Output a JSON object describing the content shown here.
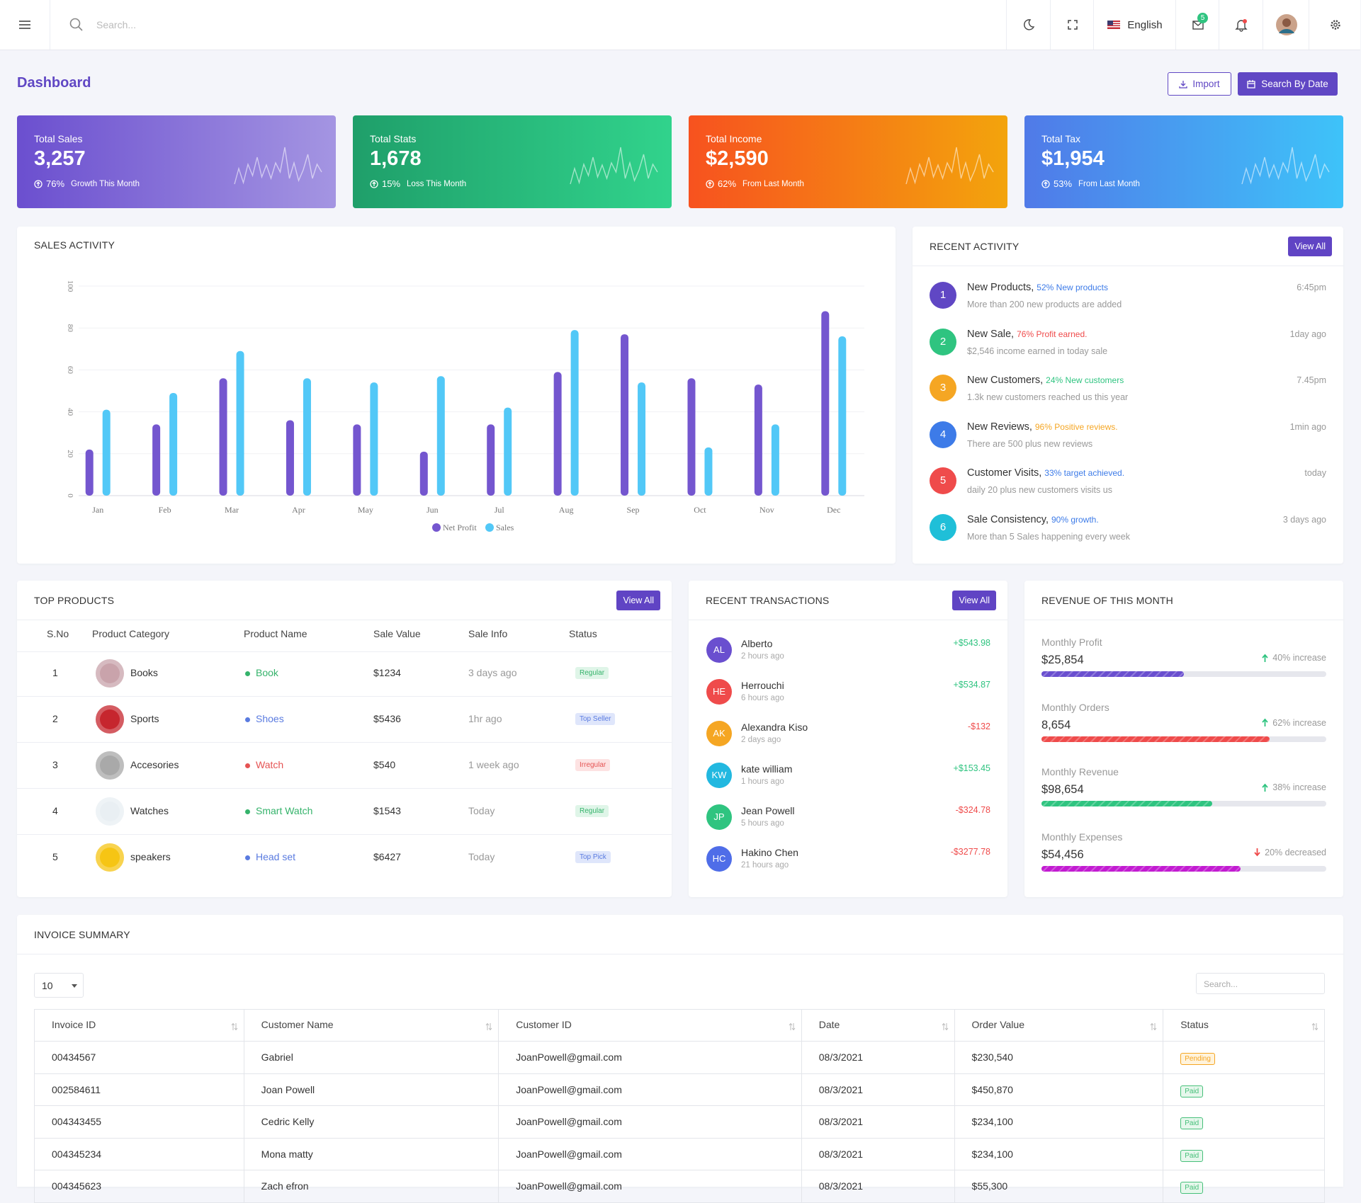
{
  "header": {
    "search_placeholder": "Search...",
    "language": "English",
    "mail_badge": 5
  },
  "page_title": "Dashboard",
  "actions": [
    "Import",
    "Search By Date"
  ],
  "stat_cards": [
    {
      "label": "Total Sales",
      "value": "3,257",
      "change": "76%",
      "note": "Growth This Month"
    },
    {
      "label": "Total Stats",
      "value": "1,678",
      "change": "15%",
      "note": "Loss This Month"
    },
    {
      "label": "Total Income",
      "value": "$2,590",
      "change": "62%",
      "note": "From Last Month"
    },
    {
      "label": "Total Tax",
      "value": "$1,954",
      "change": "53%",
      "note": "From Last Month"
    }
  ],
  "sales_activity": {
    "type": "bar",
    "title": "SALES ACTIVITY",
    "categories": [
      "Jan",
      "Feb",
      "Mar",
      "Apr",
      "May",
      "Jun",
      "Jul",
      "Aug",
      "Sep",
      "Oct",
      "Nov",
      "Dec"
    ],
    "series": [
      {
        "name": "Net Profit",
        "color": "#7456cf",
        "values": [
          22,
          34,
          56,
          36,
          34,
          21,
          34,
          59,
          77,
          56,
          53,
          88
        ]
      },
      {
        "name": "Sales",
        "color": "#52c8f7",
        "values": [
          41,
          49,
          69,
          56,
          54,
          57,
          42,
          79,
          54,
          23,
          34,
          76
        ]
      }
    ],
    "ylim": [
      0,
      100
    ],
    "yticks": [
      0,
      20,
      40,
      60,
      80,
      100
    ],
    "grid": true
  },
  "recent_activity": {
    "title": "RECENT ACTIVITY",
    "button": "View All",
    "items": [
      {
        "number": 1,
        "title": "New Products,",
        "highlight": "52% New products",
        "description": "More than 200 new products are added",
        "time": "6:45pm"
      },
      {
        "number": 2,
        "title": "New Sale,",
        "highlight": "76% Profit earned.",
        "description": "$2,546 income earned in today sale",
        "time": "1day ago"
      },
      {
        "number": 3,
        "title": "New Customers,",
        "highlight": "24% New customers",
        "description": "1.3k new customers reached us this year",
        "time": "7.45pm"
      },
      {
        "number": 4,
        "title": "New Reviews,",
        "highlight": "96% Positive reviews.",
        "description": "There are 500 plus new reviews",
        "time": "1min ago"
      },
      {
        "number": 5,
        "title": "Customer Visits,",
        "highlight": "33% target achieved.",
        "description": "daily 20 plus new customers visits us",
        "time": "today"
      },
      {
        "number": 6,
        "title": "Sale Consistency,",
        "highlight": "90% growth.",
        "description": "More than 5 Sales happening every week",
        "time": "3 days ago"
      }
    ]
  },
  "top_products": {
    "title": "TOP PRODUCTS",
    "button": "View All",
    "columns": [
      "S.No",
      "Product Category",
      "Product Name",
      "Sale Value",
      "Sale Info",
      "Status"
    ],
    "rows": [
      {
        "sno": 1,
        "category": "Books",
        "name": "Book",
        "value": "$1234",
        "info": "3 days ago",
        "status": "Regular"
      },
      {
        "sno": 2,
        "category": "Sports",
        "name": "Shoes",
        "value": "$5436",
        "info": "1hr ago",
        "status": "Top Seller"
      },
      {
        "sno": 3,
        "category": "Accesories",
        "name": "Watch",
        "value": "$540",
        "info": "1 week ago",
        "status": "Irregular"
      },
      {
        "sno": 4,
        "category": "Watches",
        "name": "Smart Watch",
        "value": "$1543",
        "info": "Today",
        "status": "Regular"
      },
      {
        "sno": 5,
        "category": "speakers",
        "name": "Head set",
        "value": "$6427",
        "info": "Today",
        "status": "Top Pick"
      }
    ]
  },
  "recent_transactions": {
    "title": "RECENT TRANSACTIONS",
    "button": "View All",
    "items": [
      {
        "initials": "AL",
        "name": "Alberto",
        "time": "2 hours ago",
        "amount": "+$543.98"
      },
      {
        "initials": "HE",
        "name": "Herrouchi",
        "time": "6 hours ago",
        "amount": "+$534.87"
      },
      {
        "initials": "AK",
        "name": "Alexandra Kiso",
        "time": "2 days ago",
        "amount": "-$132"
      },
      {
        "initials": "KW",
        "name": "kate william",
        "time": "1 hours ago",
        "amount": "+$153.45"
      },
      {
        "initials": "JP",
        "name": "Jean Powell",
        "time": "5 hours ago",
        "amount": "-$324.78"
      },
      {
        "initials": "HC",
        "name": "Hakino Chen",
        "time": "21 hours ago",
        "amount": "-$3277.78"
      }
    ]
  },
  "revenue": {
    "title": "REVENUE OF THIS MONTH",
    "items": [
      {
        "label": "Monthly Profit",
        "value": "$25,854",
        "change": "40% increase",
        "progress": 50
      },
      {
        "label": "Monthly Orders",
        "value": "8,654",
        "change": "62% increase",
        "progress": 80
      },
      {
        "label": "Monthly Revenue",
        "value": "$98,654",
        "change": "38% increase",
        "progress": 60
      },
      {
        "label": "Monthly Expenses",
        "value": "$54,456",
        "change": "20% decreased",
        "progress": 70
      }
    ]
  },
  "invoice_summary": {
    "title": "INVOICE SUMMARY",
    "page_size": 10,
    "search_placeholder": "Search...",
    "columns": [
      "Invoice ID",
      "Customer Name",
      "Customer ID",
      "Date",
      "Order Value",
      "Status"
    ],
    "rows": [
      [
        "00434567",
        "Gabriel",
        "JoanPowell@gmail.com",
        "08/3/2021",
        "$230,540",
        "Pending"
      ],
      [
        "002584611",
        "Joan Powell",
        "JoanPowell@gmail.com",
        "08/3/2021",
        "$450,870",
        "Paid"
      ],
      [
        "004343455",
        "Cedric Kelly",
        "JoanPowell@gmail.com",
        "08/3/2021",
        "$234,100",
        "Paid"
      ],
      [
        "004345234",
        "Mona matty",
        "JoanPowell@gmail.com",
        "08/3/2021",
        "$234,100",
        "Paid"
      ],
      [
        "004345623",
        "Zach efron",
        "JoanPowell@gmail.com",
        "08/3/2021",
        "$55,300",
        "Paid"
      ]
    ]
  }
}
